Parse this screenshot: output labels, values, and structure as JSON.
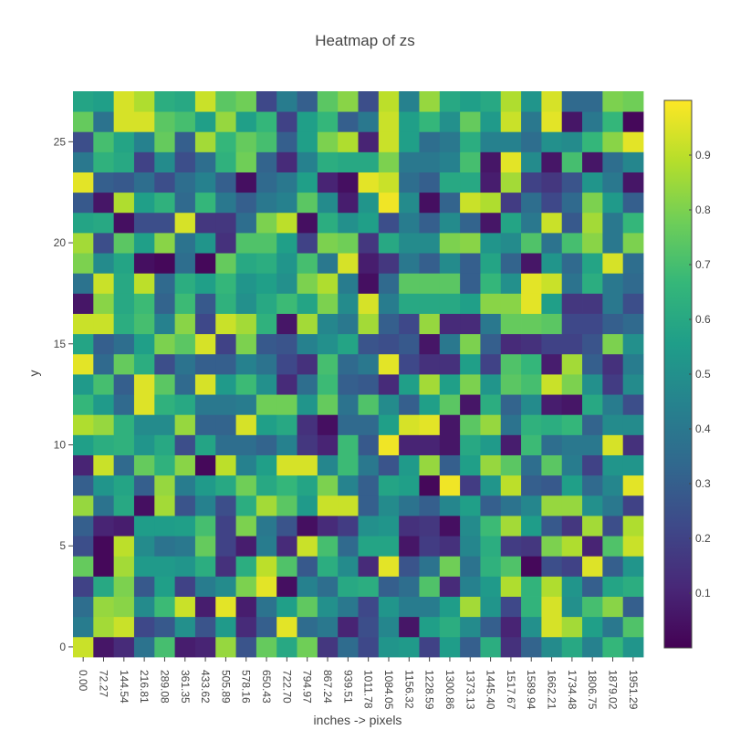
{
  "chart_data": {
    "type": "heatmap",
    "title": "Heatmap of zs",
    "xlabel": "inches -> pixels",
    "ylabel": "y",
    "colorscale": "viridis",
    "colorscale_stops": [
      "#440154",
      "#482878",
      "#3e4989",
      "#31688e",
      "#26828e",
      "#1f9e89",
      "#35b779",
      "#6ece58",
      "#b5de2b",
      "#fde725"
    ],
    "zrange": [
      0.0,
      1.0
    ],
    "colorbar_ticks": [
      "0.1",
      "0.2",
      "0.3",
      "0.4",
      "0.5",
      "0.6",
      "0.7",
      "0.8",
      "0.9"
    ],
    "colorbar_tick_values": [
      0.1,
      0.2,
      0.3,
      0.4,
      0.5,
      0.6,
      0.7,
      0.8,
      0.9
    ],
    "x_categories": [
      "0.00",
      "72.27",
      "144.54",
      "216.81",
      "289.08",
      "361.35",
      "433.62",
      "505.89",
      "578.16",
      "650.43",
      "722.70",
      "794.97",
      "867.24",
      "939.51",
      "1011.78",
      "1084.05",
      "1156.32",
      "1228.59",
      "1300.86",
      "1373.13",
      "1445.40",
      "1517.67",
      "1589.94",
      "1662.21",
      "1734.48",
      "1806.75",
      "1879.02",
      "1951.29"
    ],
    "y_range": [
      -0.5,
      27.5
    ],
    "y_ticks": [
      0,
      5,
      10,
      15,
      20,
      25
    ],
    "y_tick_labels": [
      "0",
      "5",
      "10",
      "15",
      "20",
      "25"
    ],
    "z": [
      [
        0.92,
        0.06,
        0.12,
        0.38,
        0.7,
        0.08,
        0.1,
        0.84,
        0.26,
        0.76,
        0.6,
        0.78,
        0.16,
        0.35,
        0.22,
        0.52,
        0.54,
        0.2,
        0.55,
        0.3,
        0.62,
        0.14,
        0.32,
        0.48,
        0.6,
        0.44,
        0.66,
        0.52
      ],
      [
        0.42,
        0.86,
        0.92,
        0.22,
        0.28,
        0.5,
        0.26,
        0.54,
        0.12,
        0.3,
        0.96,
        0.35,
        0.4,
        0.1,
        0.24,
        0.46,
        0.06,
        0.56,
        0.62,
        0.48,
        0.3,
        0.1,
        0.5,
        0.94,
        0.86,
        0.56,
        0.4,
        0.72
      ],
      [
        0.36,
        0.84,
        0.82,
        0.48,
        0.68,
        0.92,
        0.08,
        0.96,
        0.08,
        0.38,
        0.56,
        0.75,
        0.5,
        0.4,
        0.22,
        0.52,
        0.42,
        0.42,
        0.55,
        0.86,
        0.52,
        0.22,
        0.65,
        0.94,
        0.5,
        0.7,
        0.82,
        0.3
      ],
      [
        0.2,
        0.6,
        0.8,
        0.28,
        0.56,
        0.2,
        0.42,
        0.48,
        0.8,
        0.96,
        0.04,
        0.44,
        0.36,
        0.6,
        0.62,
        0.3,
        0.36,
        0.72,
        0.12,
        0.44,
        0.54,
        0.88,
        0.65,
        0.88,
        0.52,
        0.3,
        0.58,
        0.62
      ],
      [
        0.76,
        0.02,
        0.86,
        0.54,
        0.54,
        0.52,
        0.62,
        0.14,
        0.62,
        0.9,
        0.72,
        0.28,
        0.62,
        0.48,
        0.12,
        0.96,
        0.26,
        0.38,
        0.78,
        0.38,
        0.64,
        0.72,
        0.02,
        0.24,
        0.2,
        0.95,
        0.3,
        0.52
      ],
      [
        0.24,
        0.02,
        0.9,
        0.48,
        0.38,
        0.4,
        0.76,
        0.2,
        0.08,
        0.42,
        0.12,
        0.92,
        0.7,
        0.34,
        0.58,
        0.58,
        0.06,
        0.18,
        0.14,
        0.46,
        0.62,
        0.18,
        0.16,
        0.8,
        0.88,
        0.1,
        0.72,
        0.92
      ],
      [
        0.3,
        0.1,
        0.08,
        0.55,
        0.55,
        0.56,
        0.7,
        0.2,
        0.8,
        0.4,
        0.26,
        0.04,
        0.12,
        0.18,
        0.5,
        0.52,
        0.14,
        0.16,
        0.04,
        0.48,
        0.68,
        0.86,
        0.55,
        0.28,
        0.16,
        0.86,
        0.24,
        0.88
      ],
      [
        0.84,
        0.38,
        0.6,
        0.04,
        0.86,
        0.26,
        0.44,
        0.24,
        0.62,
        0.86,
        0.74,
        0.54,
        0.92,
        0.92,
        0.3,
        0.48,
        0.38,
        0.3,
        0.46,
        0.56,
        0.3,
        0.38,
        0.46,
        0.84,
        0.84,
        0.5,
        0.4,
        0.2
      ],
      [
        0.3,
        0.52,
        0.58,
        0.3,
        0.84,
        0.42,
        0.54,
        0.6,
        0.78,
        0.6,
        0.66,
        0.58,
        0.8,
        0.45,
        0.3,
        0.58,
        0.56,
        0.02,
        0.98,
        0.18,
        0.52,
        0.9,
        0.3,
        0.28,
        0.56,
        0.34,
        0.46,
        0.96
      ],
      [
        0.1,
        0.92,
        0.34,
        0.76,
        0.64,
        0.82,
        0.02,
        0.9,
        0.44,
        0.56,
        0.94,
        0.94,
        0.46,
        0.68,
        0.4,
        0.26,
        0.54,
        0.84,
        0.3,
        0.56,
        0.84,
        0.74,
        0.36,
        0.74,
        0.42,
        0.2,
        0.52,
        0.52
      ],
      [
        0.56,
        0.62,
        0.64,
        0.52,
        0.6,
        0.24,
        0.58,
        0.36,
        0.36,
        0.32,
        0.44,
        0.16,
        0.1,
        0.68,
        0.28,
        0.98,
        0.1,
        0.1,
        0.06,
        0.6,
        0.54,
        0.08,
        0.68,
        0.36,
        0.4,
        0.4,
        0.94,
        0.14
      ],
      [
        0.88,
        0.84,
        0.64,
        0.48,
        0.48,
        0.84,
        0.32,
        0.32,
        0.94,
        0.56,
        0.6,
        0.14,
        0.04,
        0.34,
        0.34,
        0.56,
        0.94,
        0.96,
        0.06,
        0.74,
        0.84,
        0.38,
        0.64,
        0.62,
        0.66,
        0.32,
        0.48,
        0.48
      ],
      [
        0.66,
        0.54,
        0.34,
        0.95,
        0.64,
        0.6,
        0.4,
        0.4,
        0.42,
        0.78,
        0.78,
        0.52,
        0.76,
        0.38,
        0.72,
        0.48,
        0.3,
        0.56,
        0.74,
        0.06,
        0.62,
        0.32,
        0.48,
        0.08,
        0.06,
        0.6,
        0.42,
        0.24
      ],
      [
        0.54,
        0.7,
        0.3,
        0.95,
        0.74,
        0.34,
        0.94,
        0.54,
        0.68,
        0.5,
        0.12,
        0.36,
        0.68,
        0.3,
        0.28,
        0.12,
        0.56,
        0.86,
        0.56,
        0.8,
        0.52,
        0.74,
        0.7,
        0.92,
        0.8,
        0.5,
        0.18,
        0.48
      ],
      [
        0.96,
        0.34,
        0.76,
        0.62,
        0.24,
        0.38,
        0.3,
        0.3,
        0.44,
        0.38,
        0.22,
        0.14,
        0.7,
        0.34,
        0.4,
        0.96,
        0.22,
        0.14,
        0.14,
        0.56,
        0.2,
        0.72,
        0.66,
        0.08,
        0.86,
        0.3,
        0.14,
        0.42
      ],
      [
        0.58,
        0.3,
        0.36,
        0.56,
        0.8,
        0.74,
        0.94,
        0.2,
        0.8,
        0.28,
        0.26,
        0.44,
        0.5,
        0.58,
        0.26,
        0.24,
        0.28,
        0.06,
        0.4,
        0.8,
        0.3,
        0.12,
        0.14,
        0.2,
        0.2,
        0.26,
        0.8,
        0.5
      ],
      [
        0.92,
        0.92,
        0.62,
        0.7,
        0.44,
        0.82,
        0.22,
        0.92,
        0.86,
        0.64,
        0.06,
        0.86,
        0.46,
        0.4,
        0.86,
        0.3,
        0.22,
        0.84,
        0.12,
        0.12,
        0.4,
        0.76,
        0.76,
        0.74,
        0.22,
        0.22,
        0.3,
        0.34
      ],
      [
        0.06,
        0.82,
        0.6,
        0.68,
        0.32,
        0.68,
        0.28,
        0.64,
        0.5,
        0.6,
        0.68,
        0.58,
        0.8,
        0.48,
        0.94,
        0.42,
        0.6,
        0.6,
        0.6,
        0.56,
        0.82,
        0.82,
        0.96,
        0.56,
        0.16,
        0.16,
        0.4,
        0.24
      ],
      [
        0.38,
        0.92,
        0.6,
        0.9,
        0.34,
        0.62,
        0.56,
        0.66,
        0.52,
        0.56,
        0.5,
        0.8,
        0.88,
        0.42,
        0.04,
        0.34,
        0.74,
        0.74,
        0.74,
        0.3,
        0.66,
        0.5,
        0.96,
        0.92,
        0.38,
        0.62,
        0.4,
        0.34
      ],
      [
        0.8,
        0.48,
        0.58,
        0.04,
        0.02,
        0.36,
        0.02,
        0.76,
        0.6,
        0.62,
        0.52,
        0.7,
        0.4,
        0.94,
        0.08,
        0.16,
        0.4,
        0.3,
        0.48,
        0.3,
        0.58,
        0.32,
        0.06,
        0.52,
        0.34,
        0.58,
        0.94,
        0.36
      ],
      [
        0.86,
        0.24,
        0.74,
        0.56,
        0.82,
        0.38,
        0.52,
        0.14,
        0.72,
        0.72,
        0.56,
        0.2,
        0.8,
        0.78,
        0.16,
        0.6,
        0.48,
        0.48,
        0.8,
        0.82,
        0.52,
        0.48,
        0.72,
        0.38,
        0.7,
        0.82,
        0.4,
        0.8
      ],
      [
        0.58,
        0.6,
        0.04,
        0.24,
        0.24,
        0.94,
        0.16,
        0.16,
        0.36,
        0.8,
        0.9,
        0.04,
        0.62,
        0.5,
        0.56,
        0.24,
        0.42,
        0.3,
        0.48,
        0.32,
        0.06,
        0.58,
        0.4,
        0.92,
        0.28,
        0.86,
        0.4,
        0.66
      ],
      [
        0.28,
        0.06,
        0.88,
        0.56,
        0.64,
        0.34,
        0.66,
        0.4,
        0.3,
        0.4,
        0.44,
        0.74,
        0.48,
        0.08,
        0.52,
        0.98,
        0.48,
        0.04,
        0.32,
        0.92,
        0.88,
        0.18,
        0.36,
        0.22,
        0.34,
        0.8,
        0.54,
        0.3
      ],
      [
        0.96,
        0.3,
        0.28,
        0.36,
        0.24,
        0.36,
        0.44,
        0.3,
        0.04,
        0.34,
        0.4,
        0.56,
        0.1,
        0.04,
        0.96,
        0.92,
        0.36,
        0.3,
        0.6,
        0.6,
        0.08,
        0.86,
        0.2,
        0.16,
        0.26,
        0.52,
        0.4,
        0.06
      ],
      [
        0.4,
        0.64,
        0.6,
        0.2,
        0.48,
        0.24,
        0.36,
        0.64,
        0.78,
        0.32,
        0.12,
        0.44,
        0.62,
        0.6,
        0.6,
        0.8,
        0.4,
        0.4,
        0.44,
        0.7,
        0.06,
        0.96,
        0.48,
        0.06,
        0.7,
        0.06,
        0.36,
        0.46
      ],
      [
        0.24,
        0.7,
        0.58,
        0.44,
        0.76,
        0.3,
        0.86,
        0.66,
        0.76,
        0.7,
        0.3,
        0.56,
        0.8,
        0.88,
        0.1,
        0.92,
        0.56,
        0.36,
        0.4,
        0.62,
        0.44,
        0.44,
        0.36,
        0.5,
        0.48,
        0.66,
        0.82,
        0.96
      ],
      [
        0.76,
        0.38,
        0.94,
        0.94,
        0.74,
        0.7,
        0.56,
        0.84,
        0.56,
        0.66,
        0.2,
        0.56,
        0.66,
        0.3,
        0.4,
        0.92,
        0.56,
        0.66,
        0.5,
        0.76,
        0.54,
        0.92,
        0.4,
        0.96,
        0.06,
        0.4,
        0.66,
        0.02
      ],
      [
        0.58,
        0.56,
        0.94,
        0.88,
        0.62,
        0.6,
        0.92,
        0.74,
        0.78,
        0.22,
        0.42,
        0.3,
        0.74,
        0.82,
        0.24,
        0.9,
        0.44,
        0.84,
        0.6,
        0.56,
        0.6,
        0.88,
        0.52,
        0.94,
        0.34,
        0.34,
        0.8,
        0.78
      ]
    ]
  }
}
